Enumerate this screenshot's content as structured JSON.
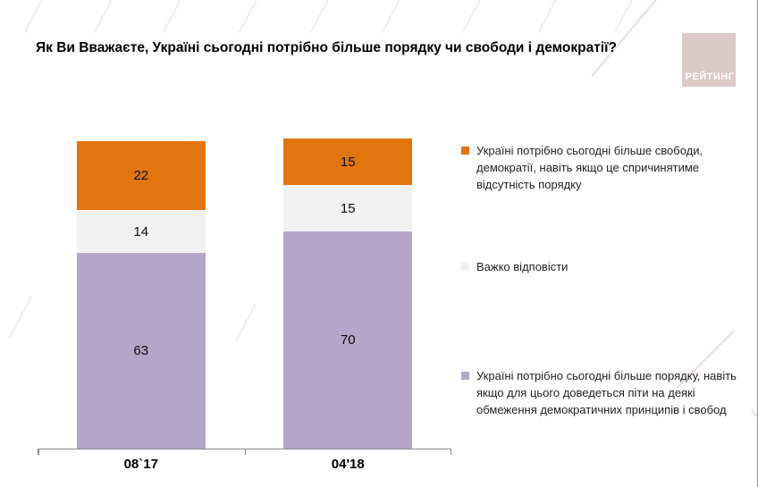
{
  "title": "Як Ви Вважаєте, Україні сьогодні потрібно більше порядку чи свободи і демократії?",
  "logo": {
    "text": "РЕЙТИНГ",
    "bg_color": "#DDC9C6",
    "text_color": "#FFFFFF"
  },
  "colors": {
    "freedom_orange": "#E1750E",
    "undecided_gray": "#F2F1F2",
    "order_purple": "#B3A6C8",
    "axis_gray": "#8C8C8C"
  },
  "chart_data": {
    "type": "bar",
    "subtype": "stacked-vertical",
    "categories": [
      "08`17",
      "04'18"
    ],
    "series": [
      {
        "name": "Україні потрібно сьогодні більше свободи, демократії, навіть якщо це спричинятиме відсутність порядку",
        "color": "#E1750E",
        "values": [
          22,
          15
        ]
      },
      {
        "name": "Важко відповісти",
        "color": "#F2F1F2",
        "values": [
          14,
          15
        ]
      },
      {
        "name": "Україні потрібно сьогодні більше порядку, навіть якщо для цього доведеться піти на деякі обмеження демократичних принципів і свобод",
        "color": "#B3A6C8",
        "values": [
          63,
          70
        ]
      }
    ],
    "title": "Як Ви Вважаєте, Україні сьогодні потрібно більше порядку чи свободи і демократії?",
    "xlabel": "",
    "ylabel": "",
    "ylim": [
      0,
      100
    ],
    "grid": false,
    "legend_position": "right",
    "data_labels": true
  }
}
